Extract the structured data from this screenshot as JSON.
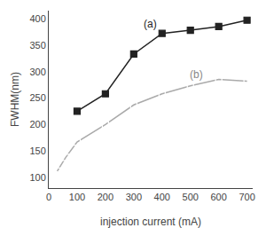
{
  "chart_data": {
    "type": "line",
    "series": [
      {
        "x": [
          100,
          200,
          300,
          400,
          500,
          600,
          700
        ],
        "values": [
          225,
          258,
          333,
          372,
          378,
          385,
          397
        ],
        "color": "#222222",
        "marker": "square"
      },
      {
        "x": [
          30,
          60,
          100,
          200,
          300,
          400,
          500,
          600,
          700
        ],
        "values": [
          112,
          138,
          167,
          200,
          237,
          258,
          273,
          285,
          282
        ],
        "color": "#aaaaaa",
        "marker": "square-open"
      }
    ],
    "annotations": [
      {
        "text": "(a)",
        "x": 330,
        "y": 375,
        "color": "#222222"
      },
      {
        "text": "(b)",
        "x": 490,
        "y": 280,
        "color": "#888888"
      }
    ],
    "xlabel": "injection current (mA)",
    "ylabel": "FWHM(nm)",
    "xlim": [
      0,
      720
    ],
    "ylim": [
      80,
      415
    ],
    "xticks": [
      0,
      100,
      200,
      300,
      400,
      500,
      600,
      700
    ],
    "yticks": [
      100,
      150,
      200,
      250,
      300,
      350,
      400
    ],
    "grid": false
  }
}
